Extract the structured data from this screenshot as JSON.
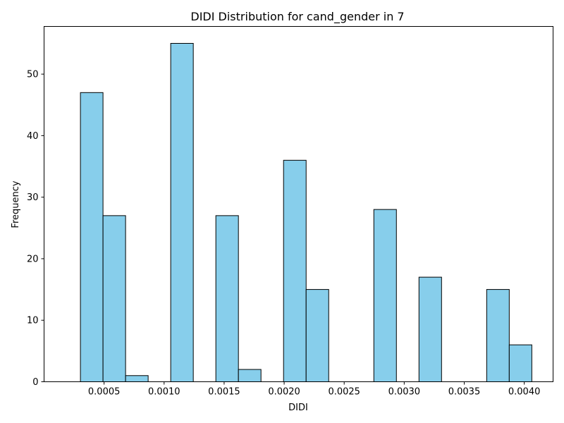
{
  "chart_data": {
    "type": "bar",
    "title": "DIDI Distribution for cand_gender in 7",
    "xlabel": "DIDI",
    "ylabel": "Frequency",
    "bar_color": "#87CEEB",
    "edge_color": "#000000",
    "xlim": [
      0.0,
      0.00424
    ],
    "ylim": [
      0,
      57.75
    ],
    "xticks": [
      {
        "value": 0.0005,
        "label": "0.0005"
      },
      {
        "value": 0.001,
        "label": "0.0010"
      },
      {
        "value": 0.0015,
        "label": "0.0015"
      },
      {
        "value": 0.002,
        "label": "0.0020"
      },
      {
        "value": 0.0025,
        "label": "0.0025"
      },
      {
        "value": 0.003,
        "label": "0.0030"
      },
      {
        "value": 0.0035,
        "label": "0.0035"
      },
      {
        "value": 0.004,
        "label": "0.0040"
      }
    ],
    "yticks": [
      {
        "value": 0,
        "label": "0"
      },
      {
        "value": 10,
        "label": "10"
      },
      {
        "value": 20,
        "label": "20"
      },
      {
        "value": 30,
        "label": "30"
      },
      {
        "value": 40,
        "label": "40"
      },
      {
        "value": 50,
        "label": "50"
      }
    ],
    "bins": [
      {
        "x0": 0.000303,
        "x1": 0.000491,
        "count": 47
      },
      {
        "x0": 0.000491,
        "x1": 0.000679,
        "count": 27
      },
      {
        "x0": 0.000679,
        "x1": 0.000867,
        "count": 1
      },
      {
        "x0": 0.000867,
        "x1": 0.001055,
        "count": 0
      },
      {
        "x0": 0.001055,
        "x1": 0.001243,
        "count": 55
      },
      {
        "x0": 0.001243,
        "x1": 0.001431,
        "count": 0
      },
      {
        "x0": 0.001431,
        "x1": 0.001619,
        "count": 27
      },
      {
        "x0": 0.001619,
        "x1": 0.001807,
        "count": 2
      },
      {
        "x0": 0.001807,
        "x1": 0.001995,
        "count": 0
      },
      {
        "x0": 0.001995,
        "x1": 0.002183,
        "count": 36
      },
      {
        "x0": 0.002183,
        "x1": 0.002371,
        "count": 15
      },
      {
        "x0": 0.002371,
        "x1": 0.002559,
        "count": 0
      },
      {
        "x0": 0.002559,
        "x1": 0.002747,
        "count": 0
      },
      {
        "x0": 0.002747,
        "x1": 0.002935,
        "count": 28
      },
      {
        "x0": 0.002935,
        "x1": 0.003123,
        "count": 0
      },
      {
        "x0": 0.003123,
        "x1": 0.003311,
        "count": 17
      },
      {
        "x0": 0.003311,
        "x1": 0.003499,
        "count": 0
      },
      {
        "x0": 0.003499,
        "x1": 0.003687,
        "count": 0
      },
      {
        "x0": 0.003687,
        "x1": 0.003875,
        "count": 15
      },
      {
        "x0": 0.003875,
        "x1": 0.004063,
        "count": 6
      }
    ]
  }
}
